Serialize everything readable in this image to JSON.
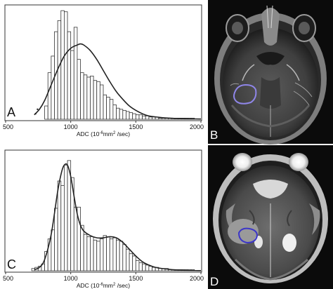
{
  "chart_data": [
    {
      "type": "bar",
      "panel_label": "A",
      "xlabel_prefix": "ADC (10",
      "xlabel_exp": "-6",
      "xlabel_mid": "mm",
      "xlabel_exp2": "2",
      "xlabel_suffix": " /sec)",
      "xlim": [
        500,
        2000
      ],
      "ylim": [
        0,
        1
      ],
      "xticks": [
        500,
        1000,
        1500,
        2000
      ],
      "tick_labels": [
        "500",
        "1000",
        "1500",
        "2000"
      ],
      "bin_width": 25,
      "bin_starts": [
        700,
        725,
        750,
        775,
        800,
        825,
        850,
        875,
        900,
        925,
        950,
        975,
        1000,
        1025,
        1050,
        1075,
        1100,
        1125,
        1150,
        1175,
        1200,
        1225,
        1250,
        1275,
        1300,
        1325,
        1350,
        1375,
        1400,
        1425,
        1450,
        1475,
        1500,
        1525,
        1550,
        1575,
        1600,
        1625,
        1650,
        1675,
        1700,
        1725,
        1750,
        1775,
        1800,
        1825,
        1850,
        1875,
        1900,
        1925,
        1950,
        1975
      ],
      "values": [
        0.0,
        0.0,
        0.0,
        0.0,
        0.12,
        0.42,
        0.57,
        0.79,
        0.89,
        0.98,
        0.97,
        0.79,
        0.62,
        0.83,
        0.54,
        0.42,
        0.4,
        0.38,
        0.39,
        0.35,
        0.34,
        0.31,
        0.22,
        0.2,
        0.18,
        0.13,
        0.1,
        0.09,
        0.08,
        0.07,
        0.06,
        0.05,
        0.04,
        0.04,
        0.03,
        0.03,
        0.02,
        0.02,
        0.02,
        0.01,
        0.01,
        0.01,
        0.01,
        0.01,
        0.01,
        0.01,
        0.01,
        0.01,
        0.01,
        0.01,
        0.0,
        0.0
      ],
      "fit_curve": {
        "x": [
          720,
          760,
          800,
          850,
          900,
          950,
          1000,
          1050,
          1075,
          1100,
          1150,
          1200,
          1250,
          1300,
          1350,
          1400,
          1450,
          1500,
          1550,
          1600,
          1700,
          1800,
          1900,
          2000
        ],
        "y": [
          0.04,
          0.09,
          0.17,
          0.31,
          0.45,
          0.57,
          0.64,
          0.67,
          0.68,
          0.67,
          0.62,
          0.54,
          0.44,
          0.34,
          0.25,
          0.18,
          0.12,
          0.08,
          0.05,
          0.03,
          0.015,
          0.008,
          0.004,
          0.002
        ]
      },
      "scatter_points": {
        "x": [
          730,
          745
        ],
        "y": [
          0.05,
          0.09
        ]
      }
    },
    {
      "type": "bar",
      "panel_label": "C",
      "xlabel_prefix": "ADC (10",
      "xlabel_exp": "-6",
      "xlabel_mid": "mm",
      "xlabel_exp2": "2",
      "xlabel_suffix": " /sec)",
      "xlim": [
        500,
        2000
      ],
      "ylim": [
        0,
        1
      ],
      "xticks": [
        500,
        1000,
        1500,
        2000
      ],
      "tick_labels": [
        "500",
        "1000",
        "1500",
        "2000"
      ],
      "bin_width": 25,
      "bin_starts": [
        700,
        725,
        750,
        775,
        800,
        825,
        850,
        875,
        900,
        925,
        950,
        975,
        1000,
        1025,
        1050,
        1075,
        1100,
        1125,
        1150,
        1175,
        1200,
        1225,
        1250,
        1275,
        1300,
        1325,
        1350,
        1375,
        1400,
        1425,
        1450,
        1475,
        1500,
        1525,
        1550,
        1575,
        1600,
        1625,
        1650,
        1675,
        1700,
        1725,
        1750,
        1775,
        1800,
        1825,
        1850,
        1875,
        1900,
        1925,
        1950,
        1975
      ],
      "values": [
        0.02,
        0.03,
        0.04,
        0.06,
        0.17,
        0.28,
        0.36,
        0.55,
        0.79,
        0.75,
        0.93,
        0.97,
        0.82,
        0.56,
        0.56,
        0.4,
        0.32,
        0.3,
        0.3,
        0.27,
        0.26,
        0.28,
        0.31,
        0.3,
        0.28,
        0.29,
        0.27,
        0.26,
        0.23,
        0.19,
        0.15,
        0.13,
        0.09,
        0.07,
        0.06,
        0.05,
        0.04,
        0.03,
        0.03,
        0.02,
        0.02,
        0.02,
        0.01,
        0.01,
        0.01,
        0.01,
        0.01,
        0.01,
        0.01,
        0.01,
        0.0,
        0.0
      ],
      "fit_curve": {
        "x": [
          720,
          760,
          800,
          850,
          900,
          930,
          950,
          975,
          1000,
          1025,
          1050,
          1075,
          1100,
          1150,
          1200,
          1250,
          1300,
          1350,
          1400,
          1450,
          1500,
          1550,
          1600,
          1650,
          1700,
          1800,
          1900,
          2000
        ],
        "y": [
          0.01,
          0.03,
          0.1,
          0.32,
          0.7,
          0.87,
          0.93,
          0.93,
          0.83,
          0.66,
          0.5,
          0.4,
          0.35,
          0.31,
          0.29,
          0.29,
          0.3,
          0.29,
          0.25,
          0.19,
          0.13,
          0.08,
          0.05,
          0.03,
          0.02,
          0.008,
          0.003,
          0.001
        ]
      }
    }
  ],
  "images": [
    {
      "panel_label": "B",
      "roi_color": "#8f86e8"
    },
    {
      "panel_label": "D",
      "roi_color": "#3c36c8"
    }
  ]
}
